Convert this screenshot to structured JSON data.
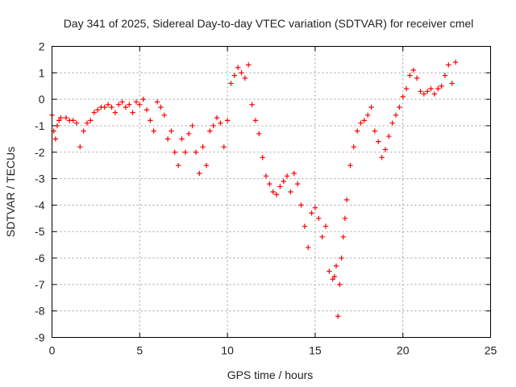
{
  "chart_data": {
    "type": "scatter",
    "title": "Day 341 of 2025, Sidereal Day-to-day VTEC variation (SDTVAR) for receiver cmel",
    "xlabel": "GPS time / hours",
    "ylabel": "SDTVAR / TECUs",
    "xlim": [
      0,
      25
    ],
    "ylim": [
      -9,
      2
    ],
    "xticks": [
      "0",
      "5",
      "10",
      "15",
      "20",
      "25"
    ],
    "yticks": [
      "-9",
      "-8",
      "-7",
      "-6",
      "-5",
      "-4",
      "-3",
      "-2",
      "-1",
      "0",
      "1",
      "2"
    ],
    "grid": true,
    "marker": "plus",
    "color": "#ff0000",
    "series": [
      {
        "x": [
          0.0,
          0.1,
          0.2,
          0.3,
          0.4,
          0.5,
          0.8,
          1.0,
          1.2,
          1.4,
          1.6,
          1.8,
          2.0,
          2.2,
          2.4,
          2.6,
          2.8,
          3.0,
          3.2,
          3.4,
          3.6,
          3.8,
          4.0,
          4.2,
          4.4,
          4.6,
          4.8,
          5.0,
          5.2,
          5.4,
          5.6,
          5.8,
          6.0,
          6.2,
          6.4,
          6.6,
          6.8,
          7.0,
          7.2,
          7.4,
          7.6,
          7.8,
          8.0,
          8.2,
          8.4,
          8.6,
          8.8,
          9.0,
          9.2,
          9.4,
          9.6,
          9.8,
          10.0,
          10.2,
          10.4,
          10.6,
          10.8,
          11.0,
          11.2,
          11.4,
          11.6,
          11.8,
          12.0,
          12.2,
          12.4,
          12.6,
          12.8,
          13.0,
          13.2,
          13.4,
          13.6,
          13.8,
          14.0,
          14.2,
          14.4,
          14.6,
          14.8,
          15.0,
          15.2,
          15.4,
          15.6,
          15.8,
          16.0,
          16.1,
          16.2,
          16.3,
          16.4,
          16.5,
          16.6,
          16.7,
          16.8,
          17.0,
          17.2,
          17.4,
          17.6,
          17.8,
          18.0,
          18.2,
          18.4,
          18.6,
          18.8,
          19.0,
          19.2,
          19.4,
          19.6,
          19.8,
          20.0,
          20.2,
          20.4,
          20.6,
          20.8,
          21.0,
          21.2,
          21.4,
          21.6,
          21.8,
          22.0,
          22.2,
          22.4,
          22.6,
          22.8,
          23.0
        ],
        "y": [
          -0.6,
          -1.2,
          -1.5,
          -1.0,
          -0.8,
          -0.7,
          -0.7,
          -0.8,
          -0.8,
          -0.9,
          -1.8,
          -1.2,
          -0.9,
          -0.8,
          -0.5,
          -0.4,
          -0.3,
          -0.3,
          -0.2,
          -0.3,
          -0.5,
          -0.2,
          -0.1,
          -0.3,
          -0.2,
          -0.5,
          -0.1,
          -0.2,
          0.0,
          -0.4,
          -0.8,
          -1.2,
          -0.1,
          -0.3,
          -0.6,
          -1.5,
          -1.2,
          -2.0,
          -2.5,
          -1.5,
          -2.0,
          -1.3,
          -1.0,
          -2.0,
          -2.8,
          -1.8,
          -2.5,
          -1.2,
          -1.0,
          -0.7,
          -0.9,
          -1.8,
          -0.8,
          0.6,
          0.9,
          1.2,
          1.0,
          0.8,
          1.3,
          -0.2,
          -0.8,
          -1.3,
          -2.2,
          -2.9,
          -3.2,
          -3.5,
          -3.6,
          -3.3,
          -3.1,
          -2.9,
          -3.5,
          -2.8,
          -3.2,
          -4.0,
          -4.8,
          -5.6,
          -4.3,
          -4.1,
          -4.5,
          -5.2,
          -4.8,
          -6.5,
          -6.8,
          -6.7,
          -6.3,
          -8.2,
          -7.0,
          -6.0,
          -5.2,
          -4.5,
          -3.8,
          -2.5,
          -1.8,
          -1.2,
          -0.9,
          -0.8,
          -0.6,
          -0.3,
          -1.2,
          -1.6,
          -2.2,
          -1.9,
          -1.4,
          -0.9,
          -0.6,
          -0.3,
          0.1,
          0.4,
          0.9,
          1.1,
          0.8,
          0.3,
          0.2,
          0.3,
          0.4,
          0.2,
          0.4,
          0.5,
          0.9,
          1.3,
          0.6,
          1.4
        ]
      }
    ]
  }
}
